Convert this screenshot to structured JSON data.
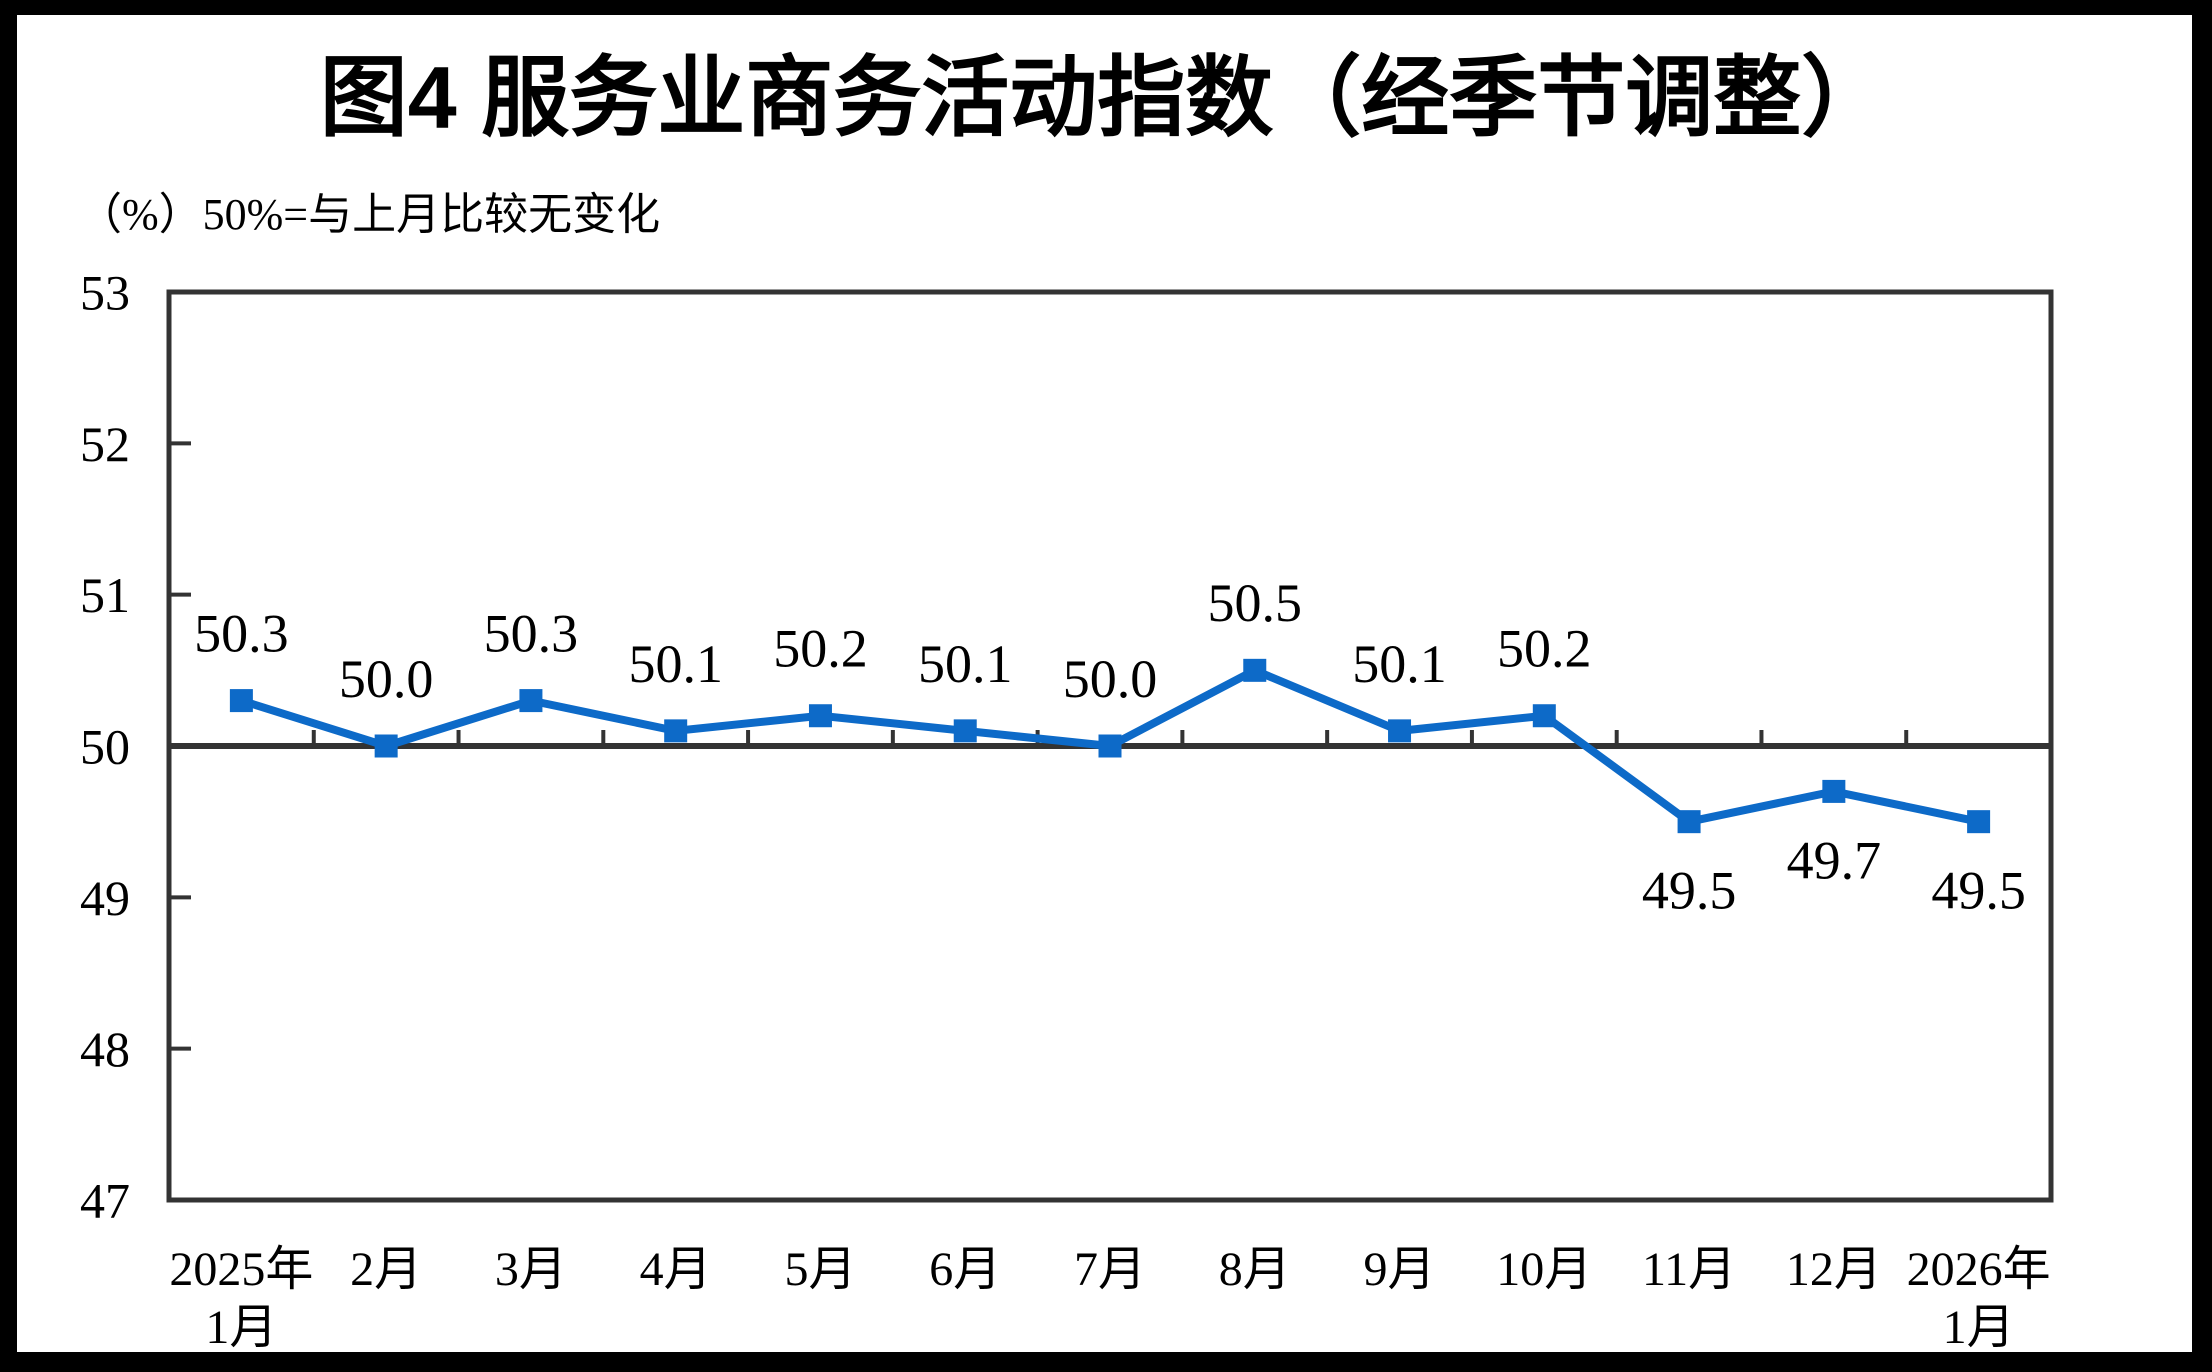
{
  "window": {
    "outer_border_color": "#000000",
    "canvas_color": "#ffffff"
  },
  "title": "图4  服务业商务活动指数（经季节调整）",
  "unit_note": "（%）50%=与上月比较无变化",
  "chart_data": {
    "type": "line",
    "title": "图4 服务业商务活动指数（经季节调整）",
    "unit_label": "（%）50%=与上月比较无变化",
    "categories": [
      "2025年1月",
      "2月",
      "3月",
      "4月",
      "5月",
      "6月",
      "7月",
      "8月",
      "9月",
      "10月",
      "11月",
      "12月",
      "2026年1月"
    ],
    "x_tick_lines": [
      [
        "2025年",
        "1月"
      ],
      [
        "2月"
      ],
      [
        "3月"
      ],
      [
        "4月"
      ],
      [
        "5月"
      ],
      [
        "6月"
      ],
      [
        "7月"
      ],
      [
        "8月"
      ],
      [
        "9月"
      ],
      [
        "10月"
      ],
      [
        "11月"
      ],
      [
        "12月"
      ],
      [
        "2026年",
        "1月"
      ]
    ],
    "series": [
      {
        "name": "服务业商务活动指数",
        "values": [
          50.3,
          50.0,
          50.3,
          50.1,
          50.2,
          50.1,
          50.0,
          50.5,
          50.1,
          50.2,
          49.5,
          49.7,
          49.5
        ],
        "color": "#0D6AC8",
        "marker": "square"
      }
    ],
    "data_labels": [
      "50.3",
      "50.0",
      "50.3",
      "50.1",
      "50.2",
      "50.1",
      "50.0",
      "50.5",
      "50.1",
      "50.2",
      "49.5",
      "49.7",
      "49.5"
    ],
    "data_label_side": [
      "above",
      "above",
      "above",
      "above",
      "above",
      "above",
      "above",
      "above",
      "above",
      "above",
      "below",
      "below",
      "below"
    ],
    "ylim": [
      47,
      53
    ],
    "yticks": [
      53,
      52,
      51,
      50,
      49,
      48,
      47
    ],
    "reference_line_y": 50,
    "grid": "off",
    "legend": "none",
    "axis_color": "#333333",
    "text_color": "#000000"
  }
}
